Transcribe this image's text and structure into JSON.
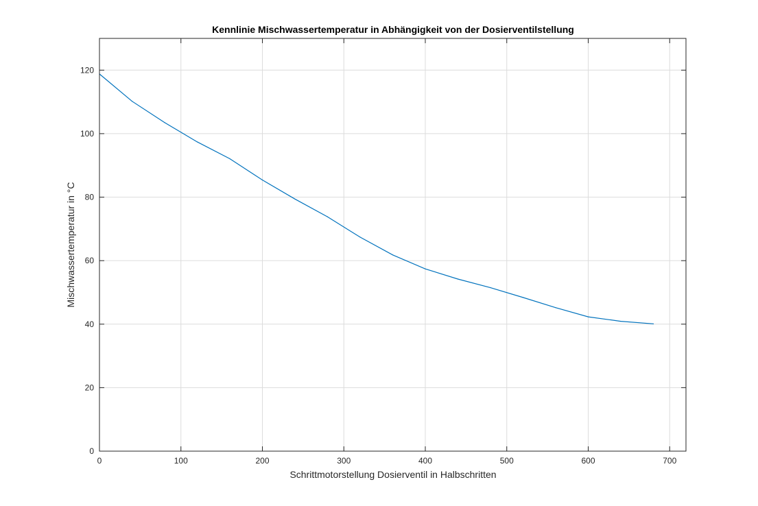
{
  "chart_data": {
    "type": "line",
    "title": "Kennlinie Mischwassertemperatur in Abhängigkeit von der Dosierventilstellung",
    "xlabel": "Schrittmotorstellung Dosierventil in Halbschritten",
    "ylabel": "Mischwassertemperatur in °C",
    "xlim": [
      0,
      720
    ],
    "ylim": [
      0,
      130
    ],
    "xticks": [
      0,
      100,
      200,
      300,
      400,
      500,
      600,
      700
    ],
    "yticks": [
      0,
      20,
      40,
      60,
      80,
      100,
      120
    ],
    "grid": true,
    "line_color": "#0072bd",
    "series": [
      {
        "x": [
          0,
          40,
          80,
          120,
          160,
          200,
          240,
          280,
          320,
          360,
          400,
          440,
          480,
          520,
          560,
          600,
          640,
          680
        ],
        "values": [
          118.8,
          110.2,
          103.5,
          97.4,
          92.1,
          85.4,
          79.4,
          73.8,
          67.4,
          61.8,
          57.4,
          54.2,
          51.5,
          48.4,
          45.2,
          42.3,
          40.9,
          40.1
        ]
      }
    ]
  }
}
